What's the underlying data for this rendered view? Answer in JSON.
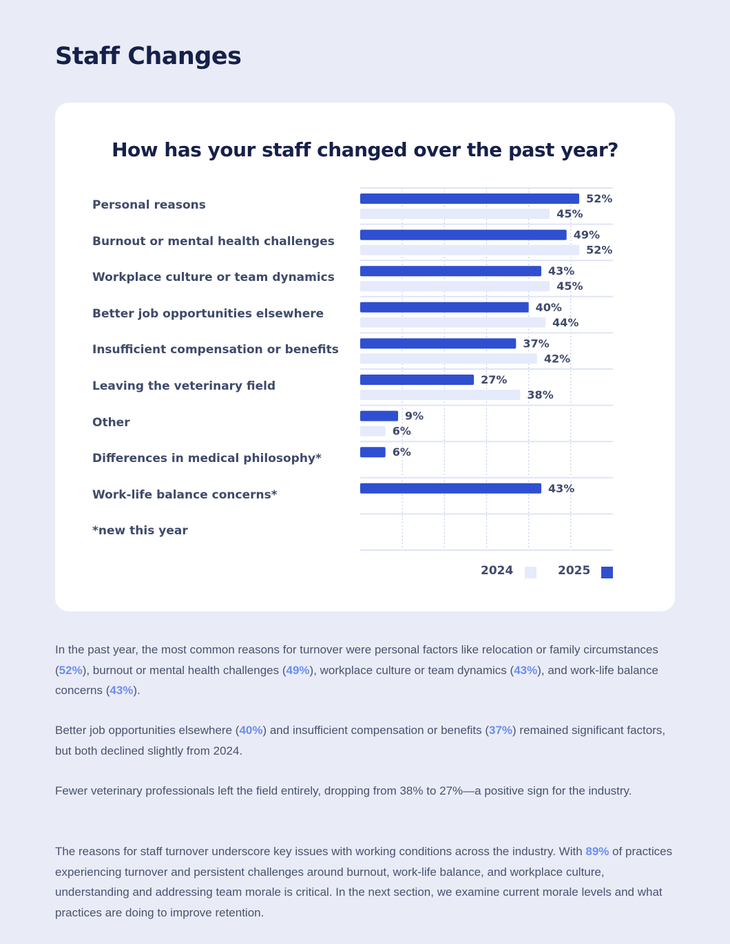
{
  "page": {
    "title": "Staff Changes"
  },
  "colors": {
    "bar_2025": "#2f4fd1",
    "bar_2024": "#e5ebfb",
    "highlight": "#6b8ef0",
    "title": "#16204a"
  },
  "chart_data": {
    "type": "bar",
    "orientation": "horizontal",
    "title": "How has your staff changed over the past year?",
    "categories": [
      "Personal reasons",
      "Burnout or mental health challenges",
      "Workplace culture or team dynamics",
      "Better job opportunities elsewhere",
      "Insufficient compensation or benefits",
      "Leaving the veterinary field",
      "Other",
      "Differences in medical philosophy*",
      "Work-life balance concerns*",
      "*new this year"
    ],
    "series": [
      {
        "name": "2025",
        "values": [
          52,
          49,
          43,
          40,
          37,
          27,
          9,
          6,
          43,
          null
        ]
      },
      {
        "name": "2024",
        "values": [
          45,
          52,
          45,
          44,
          42,
          38,
          6,
          null,
          null,
          null
        ]
      }
    ],
    "value_suffix": "%",
    "xlim": [
      0,
      60
    ],
    "grid_step": 10,
    "grid": true,
    "legend": [
      "2024",
      "2025"
    ],
    "legend_position": "bottom-right"
  },
  "text": {
    "p1": [
      {
        "t": "In the past year, the most common reasons for turnover were personal factors like relocation or family circumstances ("
      },
      {
        "t": "52%",
        "hl": true
      },
      {
        "t": "), burnout or mental health challenges ("
      },
      {
        "t": "49%",
        "hl": true
      },
      {
        "t": "), workplace culture or team dynamics ("
      },
      {
        "t": "43%",
        "hl": true
      },
      {
        "t": "), and work-life balance concerns ("
      },
      {
        "t": "43%",
        "hl": true
      },
      {
        "t": ")."
      }
    ],
    "p2": [
      {
        "t": "Better job opportunities elsewhere ("
      },
      {
        "t": "40%",
        "hl": true
      },
      {
        "t": ") and insufficient compensation or benefits ("
      },
      {
        "t": "37%",
        "hl": true
      },
      {
        "t": ") remained significant factors, but both declined slightly from 2024."
      }
    ],
    "p3": [
      {
        "t": "Fewer veterinary professionals left the field entirely, dropping from 38% to 27%—a positive sign for the industry."
      }
    ],
    "p4": [
      {
        "t": "The reasons for staff turnover underscore key issues with working conditions across the industry. With "
      },
      {
        "t": "89%",
        "hl": true
      },
      {
        "t": " of practices experiencing turnover and persistent challenges around burnout, work-life balance, and workplace culture, understanding and addressing team morale is critical. In the next section, we examine current morale levels and what practices are doing to improve retention."
      }
    ]
  }
}
